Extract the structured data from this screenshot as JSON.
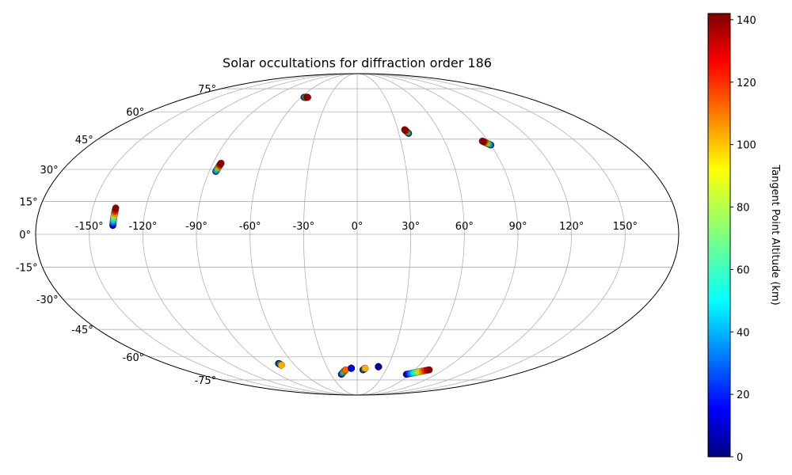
{
  "chart_data": {
    "type": "scatter",
    "projection": "mollweide",
    "title": "Solar occultations for diffraction order 186",
    "longitude_ticks": [
      "-150°",
      "-120°",
      "-90°",
      "-60°",
      "-30°",
      "0°",
      "30°",
      "60°",
      "90°",
      "120°",
      "150°"
    ],
    "longitude_values": [
      -150,
      -120,
      -90,
      -60,
      -30,
      0,
      30,
      60,
      90,
      120,
      150
    ],
    "latitude_ticks": [
      "-75°",
      "-60°",
      "-45°",
      "-30°",
      "-15°",
      "0°",
      "15°",
      "30°",
      "45°",
      "60°",
      "75°"
    ],
    "latitude_values": [
      -75,
      -60,
      -45,
      -30,
      -15,
      0,
      15,
      30,
      45,
      60,
      75
    ],
    "grid": true,
    "colorbar": {
      "label": "Tangent Point Altitude (km)",
      "range": [
        0,
        142
      ],
      "ticks": [
        "0",
        "20",
        "40",
        "60",
        "80",
        "100",
        "120",
        "140"
      ],
      "tick_values": [
        0,
        20,
        40,
        60,
        80,
        100,
        120,
        140
      ],
      "colormap": "jet"
    },
    "tracks": [
      {
        "lon_start": -137,
        "lat_start": 4,
        "lon_end": -137,
        "lat_end": 12,
        "alt_start": 10,
        "alt_end": 140
      },
      {
        "lon_start": -86,
        "lat_start": 29,
        "lon_end": -85,
        "lat_end": 33,
        "alt_start": 25,
        "alt_end": 140
      },
      {
        "lon_start": -57,
        "lat_start": 69,
        "lon_end": -53,
        "lat_end": 69,
        "alt_start": 20,
        "alt_end": 140
      },
      {
        "lon_start": 37,
        "lat_start": 48,
        "lon_end": 35,
        "lat_end": 50,
        "alt_start": 20,
        "alt_end": 140
      },
      {
        "lon_start": 90,
        "lat_start": 42,
        "lon_end": 86,
        "lat_end": 44,
        "alt_start": 20,
        "alt_end": 140
      },
      {
        "lon_start": -74,
        "lat_start": -64,
        "lon_end": -73,
        "lat_end": -65,
        "alt_start": 5,
        "alt_end": 100
      },
      {
        "lon_start": -18,
        "lat_start": -71,
        "lon_end": -12,
        "lat_end": -68,
        "alt_start": 10,
        "alt_end": 110
      },
      {
        "lon_start": -6,
        "lat_start": -67,
        "lon_end": -6,
        "lat_end": -67,
        "alt_start": 15,
        "alt_end": 15
      },
      {
        "lon_start": 6,
        "lat_start": -68,
        "lon_end": 8,
        "lat_end": -67,
        "alt_start": 10,
        "alt_end": 100
      },
      {
        "lon_start": 21,
        "lat_start": -66,
        "lon_end": 21,
        "lat_end": -66,
        "alt_start": 5,
        "alt_end": 5
      },
      {
        "lon_start": 56,
        "lat_start": -71,
        "lon_end": 75,
        "lat_end": -68,
        "alt_start": 10,
        "alt_end": 140
      }
    ]
  }
}
